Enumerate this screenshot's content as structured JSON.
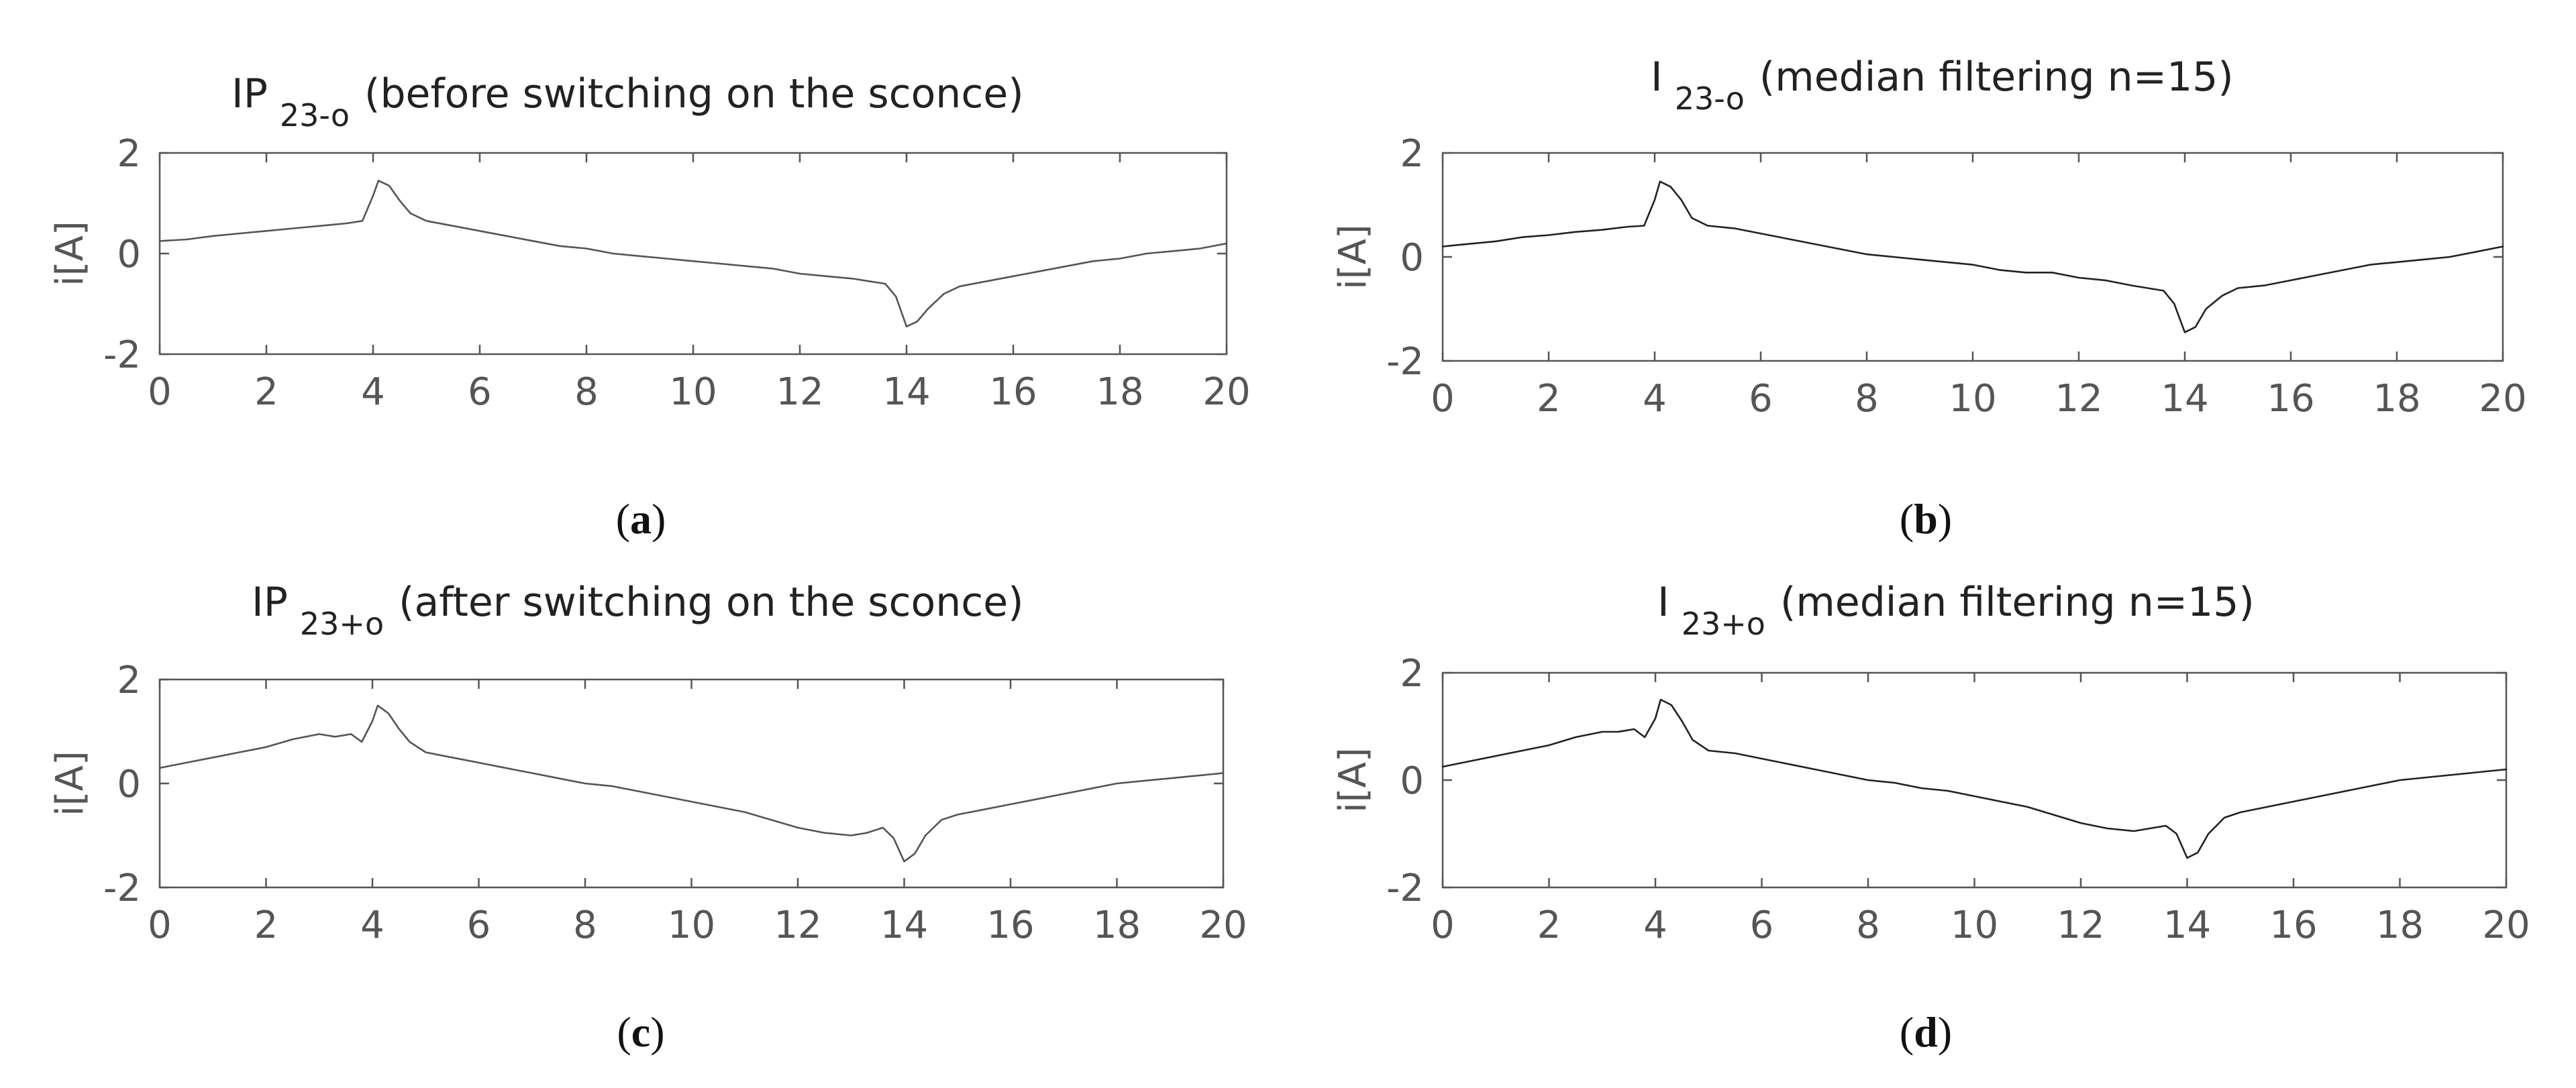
{
  "chart_data": [
    {
      "type": "line",
      "title": {
        "main": "IP",
        "sub": "23-o",
        "rest": "(before switching on the sconce)"
      },
      "caption": {
        "open": "(",
        "letter": "a",
        "close": ")"
      },
      "xlabel": "",
      "ylabel": "i[A]",
      "xlim": [
        0,
        20
      ],
      "ylim": [
        -2,
        2
      ],
      "xticks": [
        "0",
        "2",
        "4",
        "6",
        "8",
        "10",
        "12",
        "14",
        "16",
        "18",
        "20"
      ],
      "yticks": [
        "2",
        "0",
        "-2"
      ],
      "grid": false,
      "color": "#555555",
      "series": [
        {
          "x": [
            0,
            0.5,
            1,
            1.5,
            2,
            2.5,
            3,
            3.5,
            3.8,
            4,
            4.1,
            4.3,
            4.5,
            4.7,
            5,
            5.5,
            6,
            6.5,
            7,
            7.5,
            8,
            8.5,
            9,
            9.5,
            10,
            10.5,
            11,
            11.5,
            12,
            12.5,
            13,
            13.3,
            13.6,
            13.8,
            14,
            14.2,
            14.4,
            14.7,
            15,
            15.5,
            16,
            16.5,
            17,
            17.5,
            18,
            18.5,
            19,
            19.5,
            20
          ],
          "y": [
            0.25,
            0.28,
            0.35,
            0.4,
            0.45,
            0.5,
            0.55,
            0.6,
            0.65,
            1.15,
            1.45,
            1.35,
            1.05,
            0.8,
            0.65,
            0.55,
            0.45,
            0.35,
            0.25,
            0.15,
            0.1,
            0.0,
            -0.05,
            -0.1,
            -0.15,
            -0.2,
            -0.25,
            -0.3,
            -0.4,
            -0.45,
            -0.5,
            -0.55,
            -0.6,
            -0.85,
            -1.45,
            -1.35,
            -1.1,
            -0.8,
            -0.65,
            -0.55,
            -0.45,
            -0.35,
            -0.25,
            -0.15,
            -0.1,
            0.0,
            0.05,
            0.1,
            0.2
          ]
        }
      ]
    },
    {
      "type": "line",
      "title": {
        "main": "I",
        "sub": "23-o",
        "rest": "(median filtering n=15)"
      },
      "caption": {
        "open": "(",
        "letter": "b",
        "close": ")"
      },
      "xlabel": "",
      "ylabel": "i[A]",
      "xlim": [
        0,
        20
      ],
      "ylim": [
        -2,
        2
      ],
      "xticks": [
        "0",
        "2",
        "4",
        "6",
        "8",
        "10",
        "12",
        "14",
        "16",
        "18",
        "20"
      ],
      "yticks": [
        "2",
        "0",
        "-2"
      ],
      "grid": false,
      "color": "#222222",
      "series": [
        {
          "x": [
            0,
            0.5,
            1,
            1.5,
            2,
            2.5,
            3,
            3.5,
            3.8,
            4,
            4.1,
            4.3,
            4.5,
            4.7,
            5,
            5.5,
            6,
            6.5,
            7,
            7.5,
            8,
            8.5,
            9,
            9.5,
            10,
            10.5,
            11,
            11.5,
            12,
            12.5,
            13,
            13.3,
            13.6,
            13.8,
            14,
            14.2,
            14.4,
            14.7,
            15,
            15.5,
            16,
            16.5,
            17,
            17.5,
            18,
            18.5,
            19,
            19.5,
            20
          ],
          "y": [
            0.2,
            0.25,
            0.3,
            0.38,
            0.42,
            0.48,
            0.52,
            0.58,
            0.6,
            1.1,
            1.45,
            1.35,
            1.1,
            0.75,
            0.6,
            0.55,
            0.45,
            0.35,
            0.25,
            0.15,
            0.05,
            0.0,
            -0.05,
            -0.1,
            -0.15,
            -0.25,
            -0.3,
            -0.3,
            -0.4,
            -0.45,
            -0.55,
            -0.6,
            -0.65,
            -0.9,
            -1.45,
            -1.35,
            -1.0,
            -0.75,
            -0.6,
            -0.55,
            -0.45,
            -0.35,
            -0.25,
            -0.15,
            -0.1,
            -0.05,
            0.0,
            0.1,
            0.2
          ]
        }
      ]
    },
    {
      "type": "line",
      "title": {
        "main": "IP",
        "sub": "23+o",
        "rest": "(after switching on the sconce)"
      },
      "caption": {
        "open": "(",
        "letter": "c",
        "close": ")"
      },
      "xlabel": "",
      "ylabel": "i[A]",
      "xlim": [
        0,
        20
      ],
      "ylim": [
        -2,
        2
      ],
      "xticks": [
        "0",
        "2",
        "4",
        "6",
        "8",
        "10",
        "12",
        "14",
        "16",
        "18",
        "20"
      ],
      "yticks": [
        "2",
        "0",
        "-2"
      ],
      "grid": false,
      "color": "#555555",
      "series": [
        {
          "x": [
            0,
            0.5,
            1,
            1.5,
            2,
            2.5,
            3,
            3.3,
            3.6,
            3.8,
            4,
            4.1,
            4.3,
            4.5,
            4.7,
            5,
            5.5,
            6,
            6.5,
            7,
            7.5,
            8,
            8.5,
            9,
            9.5,
            10,
            10.5,
            11,
            11.5,
            12,
            12.5,
            13,
            13.3,
            13.6,
            13.8,
            14,
            14.2,
            14.4,
            14.7,
            15,
            15.5,
            16,
            16.5,
            17,
            17.5,
            18,
            18.5,
            19,
            19.5,
            20
          ],
          "y": [
            0.3,
            0.4,
            0.5,
            0.6,
            0.7,
            0.85,
            0.95,
            0.9,
            0.95,
            0.8,
            1.2,
            1.5,
            1.35,
            1.05,
            0.8,
            0.6,
            0.5,
            0.4,
            0.3,
            0.2,
            0.1,
            0.0,
            -0.05,
            -0.15,
            -0.25,
            -0.35,
            -0.45,
            -0.55,
            -0.7,
            -0.85,
            -0.95,
            -1.0,
            -0.95,
            -0.85,
            -1.05,
            -1.5,
            -1.35,
            -1.0,
            -0.7,
            -0.6,
            -0.5,
            -0.4,
            -0.3,
            -0.2,
            -0.1,
            0.0,
            0.05,
            0.1,
            0.15,
            0.2
          ]
        }
      ]
    },
    {
      "type": "line",
      "title": {
        "main": "I",
        "sub": "23+o",
        "rest": "(median filtering n=15)"
      },
      "caption": {
        "open": "(",
        "letter": "d",
        "close": ")"
      },
      "xlabel": "",
      "ylabel": "i[A]",
      "xlim": [
        0,
        20
      ],
      "ylim": [
        -2,
        2
      ],
      "xticks": [
        "0",
        "2",
        "4",
        "6",
        "8",
        "10",
        "12",
        "14",
        "16",
        "18",
        "20"
      ],
      "yticks": [
        "2",
        "0",
        "-2"
      ],
      "grid": false,
      "color": "#222222",
      "series": [
        {
          "x": [
            0,
            0.5,
            1,
            1.5,
            2,
            2.5,
            3,
            3.3,
            3.6,
            3.8,
            4,
            4.1,
            4.3,
            4.5,
            4.7,
            5,
            5.5,
            6,
            6.5,
            7,
            7.5,
            8,
            8.5,
            9,
            9.5,
            10,
            10.5,
            11,
            11.5,
            12,
            12.5,
            13,
            13.3,
            13.6,
            13.8,
            14,
            14.2,
            14.4,
            14.7,
            15,
            15.5,
            16,
            16.5,
            17,
            17.5,
            18,
            18.5,
            19,
            19.5,
            20
          ],
          "y": [
            0.25,
            0.35,
            0.45,
            0.55,
            0.65,
            0.8,
            0.9,
            0.9,
            0.95,
            0.8,
            1.15,
            1.5,
            1.4,
            1.1,
            0.75,
            0.55,
            0.5,
            0.4,
            0.3,
            0.2,
            0.1,
            0.0,
            -0.05,
            -0.15,
            -0.2,
            -0.3,
            -0.4,
            -0.5,
            -0.65,
            -0.8,
            -0.9,
            -0.95,
            -0.9,
            -0.85,
            -1.0,
            -1.45,
            -1.35,
            -1.0,
            -0.7,
            -0.6,
            -0.5,
            -0.4,
            -0.3,
            -0.2,
            -0.1,
            0.0,
            0.05,
            0.1,
            0.15,
            0.2
          ]
        }
      ]
    }
  ]
}
